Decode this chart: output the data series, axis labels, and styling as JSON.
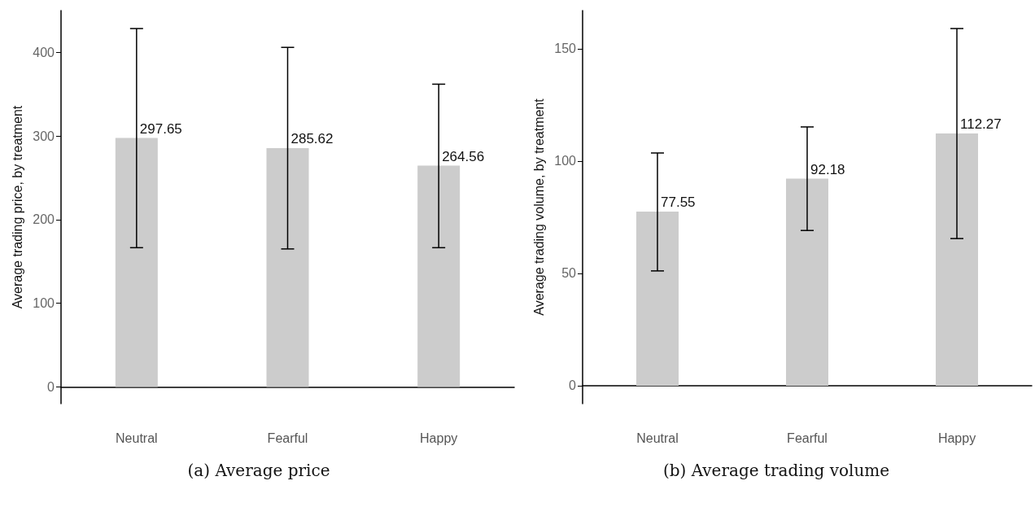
{
  "chart_data": [
    {
      "type": "bar",
      "title": "(a) Average price",
      "ylabel": "Average trading price, by treatment",
      "categories": [
        "Neutral",
        "Fearful",
        "Happy"
      ],
      "values": [
        297.65,
        285.62,
        264.56
      ],
      "color": "#cccccc",
      "errors": [
        [
          166.5,
          428.5
        ],
        [
          165,
          406
        ],
        [
          166.5,
          362
        ]
      ],
      "ylim": [
        -20,
        450
      ],
      "yticks": [
        0,
        100,
        200,
        300,
        400
      ],
      "data_labels": true
    },
    {
      "type": "bar",
      "title": "(b) Average trading volume",
      "ylabel": "Average trading volume, by treatment",
      "categories": [
        "Neutral",
        "Fearful",
        "Happy"
      ],
      "values": [
        77.55,
        92.18,
        112.27
      ],
      "color": "#cccccc",
      "errors": [
        [
          51.1,
          103.6
        ],
        [
          69.1,
          115.2
        ],
        [
          65.5,
          159
        ]
      ],
      "ylim": [
        -8,
        167
      ],
      "yticks": [
        0,
        50,
        100,
        150
      ],
      "data_labels": true
    }
  ]
}
